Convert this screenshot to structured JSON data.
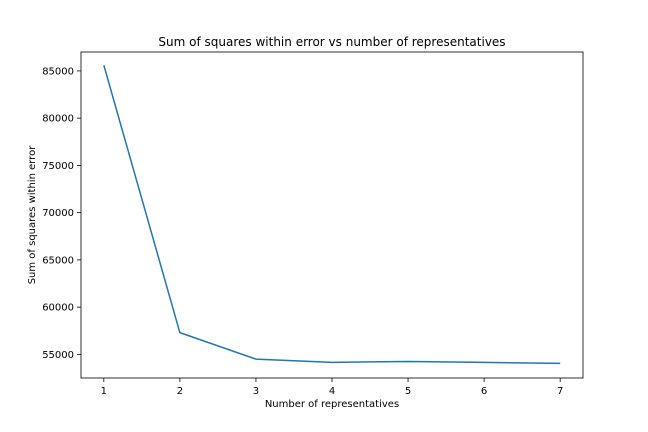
{
  "chart_data": {
    "type": "line",
    "title": "Sum of squares within error vs number of representatives",
    "xlabel": "Number of representatives",
    "ylabel": "Sum of squares within error",
    "x": [
      1,
      2,
      3,
      4,
      5,
      6,
      7
    ],
    "series": [
      {
        "values": [
          85600,
          57300,
          54500,
          54150,
          54250,
          54150,
          54050
        ]
      }
    ],
    "xlim": [
      0.7,
      7.3
    ],
    "ylim": [
      52500,
      87000
    ],
    "xticks": [
      1,
      2,
      3,
      4,
      5,
      6,
      7
    ],
    "yticks": [
      55000,
      60000,
      65000,
      70000,
      75000,
      80000,
      85000
    ],
    "grid": false,
    "line_color": "#1f77b4"
  }
}
